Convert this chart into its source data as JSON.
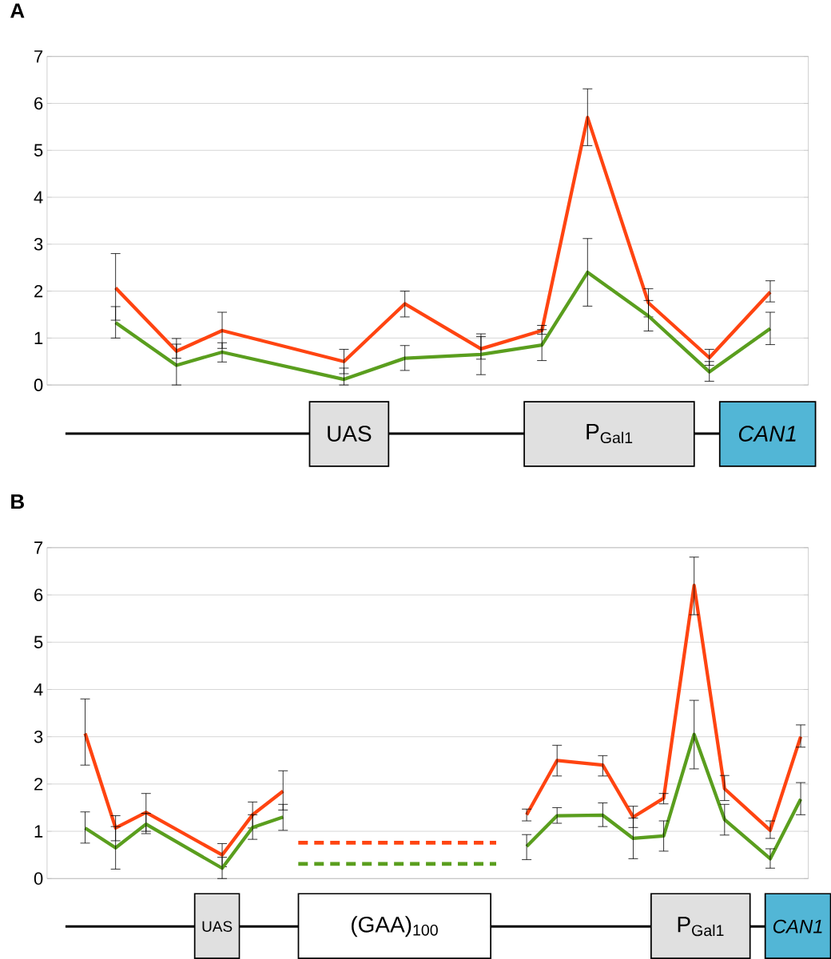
{
  "chart_data": [
    {
      "type": "line",
      "title": "A",
      "annotations": [
        "UAS",
        "P$_{Gal1}$",
        "CAN1"
      ],
      "categories": [
        null,
        null,
        null,
        null,
        null,
        null,
        null,
        null,
        null,
        null,
        null,
        null,
        null,
        null,
        null,
        null,
        null,
        null,
        null,
        null,
        null,
        null,
        null,
        null,
        null,
        null,
        null,
        null,
        null,
        null,
        null,
        null,
        null,
        null,
        null,
        null,
        null,
        null,
        null,
        null,
        null,
        null,
        null,
        null,
        null,
        null,
        null,
        null,
        null,
        null
      ],
      "ylim": [
        0,
        7
      ],
      "yticks": [
        0,
        1,
        2,
        3,
        4,
        5,
        6,
        7
      ],
      "grid": "y",
      "tick_labels": "y",
      "series": [
        {
          "color": "#ff4411",
          "values": [
            null,
            null,
            null,
            null,
            2.07,
            null,
            null,
            null,
            0.72,
            null,
            null,
            1.16,
            null,
            null,
            null,
            null,
            null,
            null,
            null,
            0.5,
            null,
            null,
            null,
            1.73,
            null,
            null,
            null,
            null,
            0.77,
            null,
            null,
            null,
            1.16,
            null,
            null,
            5.7,
            null,
            null,
            null,
            1.75,
            null,
            null,
            null,
            0.58,
            null,
            null,
            null,
            1.98,
            null,
            null
          ],
          "errors": [
            null,
            null,
            null,
            null,
            [
              1.38,
              2.8
            ],
            null,
            null,
            null,
            [
              0.57,
              0.87
            ],
            null,
            null,
            [
              0.78,
              1.55
            ],
            null,
            null,
            null,
            null,
            null,
            null,
            null,
            [
              0.24,
              0.76
            ],
            null,
            null,
            null,
            [
              1.45,
              2.0
            ],
            null,
            null,
            null,
            null,
            [
              0.55,
              1.09
            ],
            null,
            null,
            null,
            [
              1.08,
              1.27
            ],
            null,
            null,
            [
              5.1,
              6.31
            ],
            null,
            null,
            null,
            [
              1.45,
              2.05
            ],
            null,
            null,
            null,
            [
              0.42,
              0.76
            ],
            null,
            null,
            null,
            [
              1.77,
              2.22
            ],
            null,
            null
          ]
        },
        {
          "color": "#5a9e1e",
          "values": [
            null,
            null,
            null,
            null,
            1.33,
            null,
            null,
            null,
            0.42,
            null,
            null,
            0.7,
            null,
            null,
            null,
            null,
            null,
            null,
            null,
            0.12,
            null,
            null,
            null,
            0.57,
            null,
            null,
            null,
            null,
            0.65,
            null,
            null,
            null,
            0.85,
            null,
            null,
            2.4,
            null,
            null,
            null,
            1.47,
            null,
            null,
            null,
            0.28,
            null,
            null,
            null,
            1.2,
            null,
            null
          ],
          "errors": [
            null,
            null,
            null,
            null,
            [
              1.0,
              1.67
            ],
            null,
            null,
            null,
            [
              0,
              0.99
            ],
            null,
            null,
            [
              0.49,
              0.9
            ],
            null,
            null,
            null,
            null,
            null,
            null,
            null,
            [
              0,
              0.36
            ],
            null,
            null,
            null,
            [
              0.31,
              0.84
            ],
            null,
            null,
            null,
            null,
            [
              0.22,
              1.03
            ],
            null,
            null,
            null,
            [
              0.52,
              1.18
            ],
            null,
            null,
            [
              1.68,
              3.12
            ],
            null,
            null,
            null,
            [
              1.15,
              1.8
            ],
            null,
            null,
            null,
            [
              0.08,
              0.5
            ],
            null,
            null,
            null,
            [
              0.86,
              1.55
            ],
            null,
            null
          ]
        }
      ]
    },
    {
      "type": "line",
      "title": "B",
      "annotations": [
        "UAS",
        "(GAA)$_{100}$",
        "P$_{Gal1}$",
        "CAN1"
      ],
      "categories": [
        null,
        null,
        null,
        null,
        null,
        null,
        null,
        null,
        null,
        null,
        null,
        null,
        null,
        null,
        null,
        null,
        null,
        null,
        null,
        null,
        null,
        null,
        null,
        null,
        null,
        null,
        null,
        null,
        null,
        null,
        null,
        null,
        null,
        null,
        null,
        null,
        null,
        null,
        null,
        null,
        null,
        null,
        null,
        null,
        null,
        null,
        null,
        null,
        null,
        null
      ],
      "ylim": [
        0,
        7
      ],
      "yticks": [
        0,
        1,
        2,
        3,
        4,
        5,
        6,
        7
      ],
      "grid": "y",
      "tick_labels": "y",
      "series": [
        {
          "color": "#ff4411",
          "values": [
            null,
            null,
            3.07,
            null,
            1.07,
            null,
            1.4,
            null,
            null,
            null,
            null,
            0.5,
            null,
            1.35,
            null,
            1.85,
            null,
            null,
            null,
            null,
            null,
            null,
            null,
            null,
            null,
            null,
            null,
            null,
            null,
            null,
            null,
            null,
            null,
            null,
            null,
            null,
            null,
            null,
            null,
            null,
            null,
            null,
            null,
            null,
            null,
            null,
            null,
            null,
            null,
            null
          ],
          "errors": [
            null,
            null,
            [
              2.4,
              3.8
            ],
            null,
            [
              0.8,
              1.33
            ],
            null,
            [
              1.0,
              1.8
            ],
            null,
            null,
            null,
            null,
            [
              0.25,
              0.74
            ],
            null,
            [
              1.07,
              1.62
            ],
            null,
            [
              1.45,
              2.28
            ],
            null,
            null,
            null,
            null,
            null,
            null,
            null,
            null,
            null,
            null,
            null,
            null,
            null,
            null,
            null,
            null,
            null,
            null,
            null,
            null,
            null,
            null,
            null,
            null,
            null,
            null,
            null,
            null,
            null,
            null,
            null,
            null,
            null,
            null
          ]
        },
        {
          "color": "#5a9e1e",
          "values": [
            null,
            null,
            1.07,
            null,
            0.65,
            null,
            1.15,
            null,
            null,
            null,
            null,
            0.22,
            null,
            1.08,
            null,
            1.3,
            null,
            null,
            null,
            null,
            null,
            null,
            null,
            null,
            null,
            null,
            null,
            null,
            null,
            null,
            null,
            null,
            null,
            null,
            null,
            null,
            null,
            null,
            null,
            null,
            null,
            null,
            null,
            null,
            null,
            null,
            null,
            null,
            null,
            null
          ],
          "errors": [
            null,
            null,
            [
              0.75,
              1.41
            ],
            null,
            [
              0.2,
              1.1
            ],
            null,
            [
              0.95,
              1.38
            ],
            null,
            null,
            null,
            null,
            [
              0,
              0.45
            ],
            null,
            [
              0.83,
              1.35
            ],
            null,
            [
              1.02,
              1.57
            ],
            null,
            null,
            null,
            null,
            null,
            null,
            null,
            null,
            null,
            null,
            null,
            null,
            null,
            null,
            null,
            null,
            null,
            null,
            null,
            null,
            null,
            null,
            null,
            null,
            null,
            null,
            null,
            null,
            null,
            null,
            null,
            null,
            null,
            null
          ]
        },
        {
          "color": "#ff4411",
          "line_style": "dashed",
          "values": [
            null,
            null,
            null,
            null,
            null,
            null,
            null,
            null,
            null,
            null,
            null,
            null,
            null,
            null,
            null,
            null,
            0.76,
            null,
            null,
            null,
            null,
            null,
            null,
            null,
            null,
            null,
            null,
            null,
            null,
            0.76,
            null,
            null,
            null,
            null,
            null,
            null,
            null,
            null,
            null,
            null,
            null,
            null,
            null,
            null,
            null,
            null,
            null,
            null,
            null,
            null
          ]
        },
        {
          "color": "#5a9e1e",
          "line_style": "dashed",
          "values": [
            null,
            null,
            null,
            null,
            null,
            null,
            null,
            null,
            null,
            null,
            null,
            null,
            null,
            null,
            null,
            null,
            0.31,
            null,
            null,
            null,
            null,
            null,
            null,
            null,
            null,
            null,
            null,
            null,
            null,
            0.31,
            null,
            null,
            null,
            null,
            null,
            null,
            null,
            null,
            null,
            null,
            null,
            null,
            null,
            null,
            null,
            null,
            null,
            null,
            null,
            null
          ]
        },
        {
          "color": "#ff4411",
          "values": [
            null,
            null,
            null,
            null,
            null,
            null,
            null,
            null,
            null,
            null,
            null,
            null,
            null,
            null,
            null,
            null,
            null,
            null,
            null,
            null,
            null,
            null,
            null,
            null,
            null,
            null,
            null,
            null,
            null,
            null,
            null,
            1.35,
            null,
            2.5,
            null,
            null,
            2.4,
            null,
            1.3,
            null,
            1.7,
            null,
            6.2,
            null,
            1.9,
            null,
            null,
            1.02,
            null,
            3.0
          ],
          "errors": [
            null,
            null,
            null,
            null,
            null,
            null,
            null,
            null,
            null,
            null,
            null,
            null,
            null,
            null,
            null,
            null,
            null,
            null,
            null,
            null,
            null,
            null,
            null,
            null,
            null,
            null,
            null,
            null,
            null,
            null,
            null,
            [
              1.22,
              1.47
            ],
            null,
            [
              2.17,
              2.82
            ],
            null,
            null,
            [
              2.17,
              2.6
            ],
            null,
            [
              1.08,
              1.53
            ],
            null,
            [
              1.58,
              1.8
            ],
            null,
            [
              5.58,
              6.8
            ],
            null,
            [
              1.65,
              2.18
            ],
            null,
            null,
            [
              0.85,
              1.22
            ],
            null,
            [
              2.78,
              3.25
            ]
          ]
        },
        {
          "color": "#5a9e1e",
          "values": [
            null,
            null,
            null,
            null,
            null,
            null,
            null,
            null,
            null,
            null,
            null,
            null,
            null,
            null,
            null,
            null,
            null,
            null,
            null,
            null,
            null,
            null,
            null,
            null,
            null,
            null,
            null,
            null,
            null,
            null,
            null,
            0.68,
            null,
            1.33,
            null,
            null,
            1.34,
            null,
            0.85,
            null,
            0.9,
            null,
            3.05,
            null,
            1.25,
            null,
            null,
            0.42,
            null,
            1.68
          ],
          "errors": [
            null,
            null,
            null,
            null,
            null,
            null,
            null,
            null,
            null,
            null,
            null,
            null,
            null,
            null,
            null,
            null,
            null,
            null,
            null,
            null,
            null,
            null,
            null,
            null,
            null,
            null,
            null,
            null,
            null,
            null,
            null,
            [
              0.4,
              0.93
            ],
            null,
            [
              1.17,
              1.5
            ],
            null,
            null,
            [
              1.1,
              1.6
            ],
            null,
            [
              0.42,
              1.28
            ],
            null,
            [
              0.58,
              1.22
            ],
            null,
            [
              2.32,
              3.77
            ],
            null,
            [
              0.92,
              1.57
            ],
            null,
            null,
            [
              0.22,
              0.63
            ],
            null,
            [
              1.35,
              2.03
            ]
          ]
        }
      ]
    }
  ]
}
